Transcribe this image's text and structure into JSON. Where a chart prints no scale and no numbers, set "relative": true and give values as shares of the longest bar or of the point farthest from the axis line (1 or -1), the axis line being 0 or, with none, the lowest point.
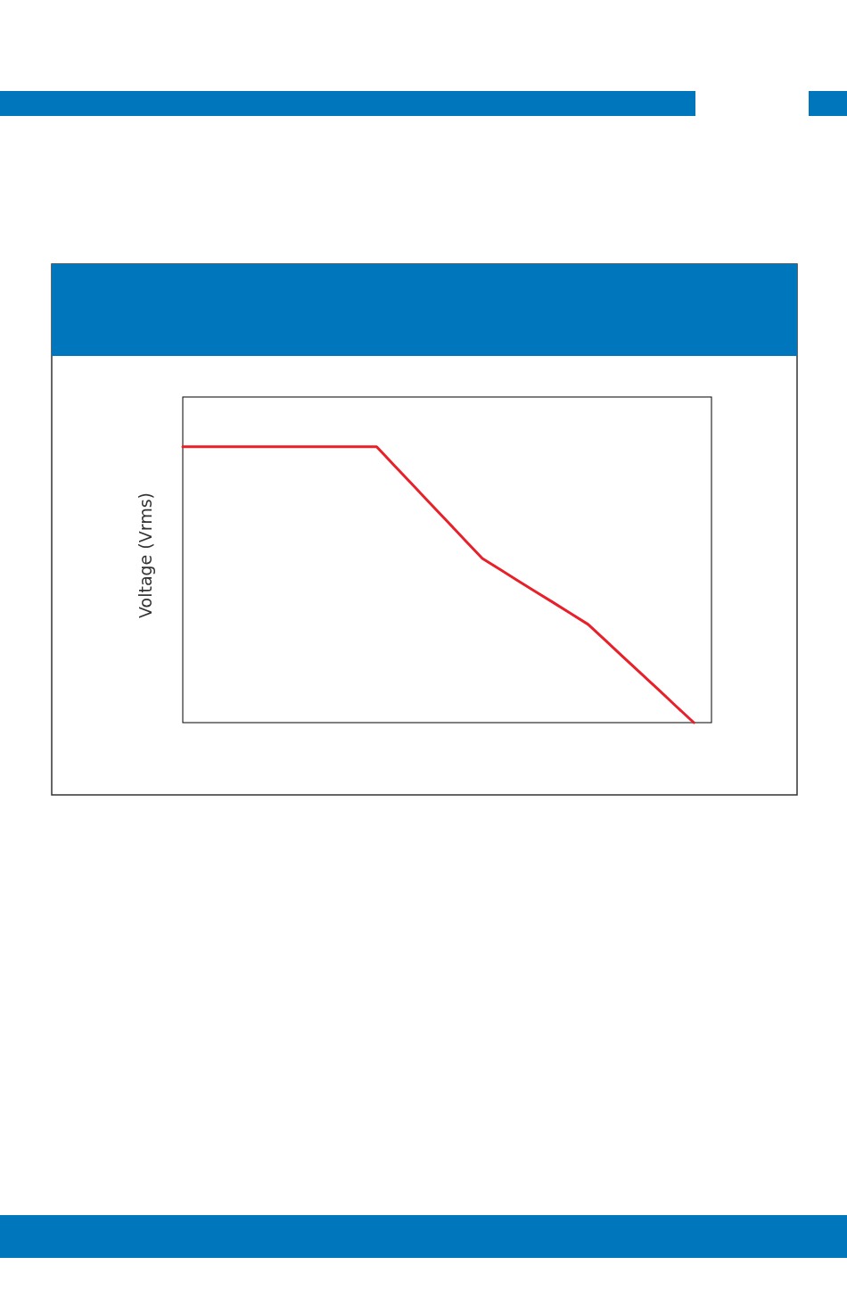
{
  "chart_data": {
    "type": "line",
    "ylabel": "Voltage (Vrms)",
    "relative": true,
    "categories": [
      null,
      null,
      null,
      null,
      null,
      null,
      null,
      null,
      null,
      null,
      null,
      null,
      null,
      null,
      null,
      null,
      null,
      null,
      null,
      null,
      null,
      null,
      null,
      null,
      null,
      null,
      null,
      null,
      null,
      null,
      null
    ],
    "series": [
      {
        "color": "#e8202a",
        "values": [
          1,
          1,
          1,
          1,
          1,
          1,
          1,
          1,
          1,
          1,
          1,
          1,
          0.932,
          0.865,
          0.797,
          0.73,
          0.662,
          0.595,
          0.555,
          0.515,
          0.475,
          0.436,
          0.396,
          0.356,
          0.297,
          0.237,
          0.178,
          0.119,
          0.059,
          0,
          null
        ]
      }
    ]
  }
}
